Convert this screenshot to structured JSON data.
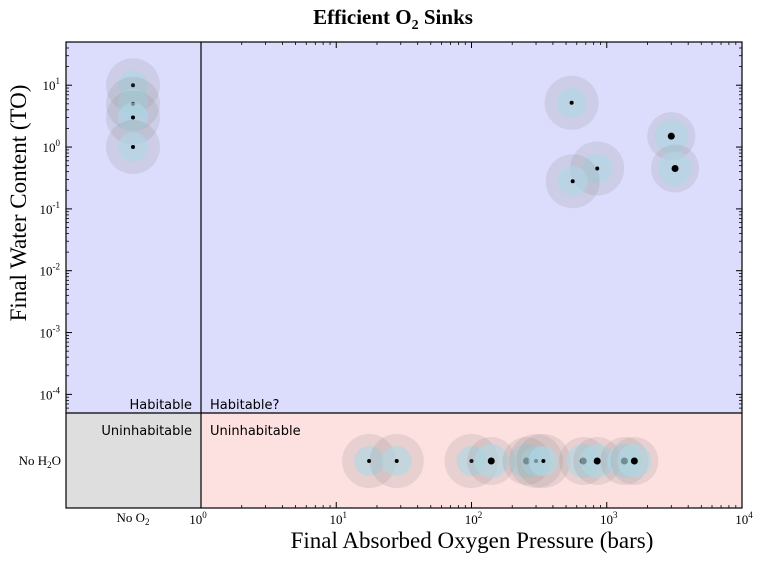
{
  "chart_data": {
    "type": "scatter",
    "title": "Efficient O",
    "title_sub": "2",
    "title_suffix": " Sinks",
    "xlabel": "Final Absorbed Oxygen Pressure (bars)",
    "ylabel": "Final Water Content (TO)",
    "x_scale": "log",
    "y_scale": "log",
    "xlim": [
      1,
      10000
    ],
    "ylim": [
      5e-05,
      50
    ],
    "x_ticks": [
      {
        "base": "10",
        "exp": "1",
        "value": 10
      },
      {
        "base": "10",
        "exp": "2",
        "value": 100
      },
      {
        "base": "10",
        "exp": "3",
        "value": 1000
      },
      {
        "base": "10",
        "exp": "4",
        "value": 10000
      }
    ],
    "x_origin_tick": {
      "base": "10",
      "exp": "0"
    },
    "y_ticks": [
      {
        "base": "10",
        "exp": "1",
        "value": 10
      },
      {
        "base": "10",
        "exp": "0",
        "value": 1
      },
      {
        "base": "10",
        "exp": "-1",
        "value": 0.1
      },
      {
        "base": "10",
        "exp": "-2",
        "value": 0.01
      },
      {
        "base": "10",
        "exp": "-3",
        "value": 0.001
      },
      {
        "base": "10",
        "exp": "-4",
        "value": 0.0001
      }
    ],
    "no_o2_label": {
      "main": "No O",
      "sub": "2"
    },
    "no_h2o_label": {
      "main": "No H",
      "sub": "2",
      "suffix": "O"
    },
    "regions": {
      "habitable": "Habitable",
      "habitable_q": "Habitable?",
      "uninhabitable_left": "Uninhabitable",
      "uninhabitable_right": "Uninhabitable"
    },
    "colors": {
      "habitable_bg": "#dcdcfc",
      "uninhabitable_bg": "#fde0e0",
      "no_o2_uninhabitable_bg": "#dedede",
      "halo": "#8a8a8a",
      "halo_opacity": 0.18,
      "core": "#add8e6",
      "core_opacity": 0.6,
      "dot": "#000000"
    },
    "series": [
      {
        "name": "no_o2_column",
        "points": [
          {
            "x": null,
            "y": 10,
            "size": "small"
          },
          {
            "x": null,
            "y": 5,
            "size": "small"
          },
          {
            "x": null,
            "y": 3,
            "size": "small"
          },
          {
            "x": null,
            "y": 1,
            "size": "small"
          }
        ]
      },
      {
        "name": "habitable_main",
        "points": [
          {
            "x": 550,
            "y": 5.2,
            "size": "small"
          },
          {
            "x": 850,
            "y": 0.45,
            "size": "small"
          },
          {
            "x": 560,
            "y": 0.28,
            "size": "small"
          },
          {
            "x": 3000,
            "y": 1.5,
            "size": "large"
          },
          {
            "x": 3200,
            "y": 0.45,
            "size": "large"
          }
        ]
      },
      {
        "name": "no_h2o_row",
        "points": [
          {
            "x": 17.5,
            "y": null,
            "size": "small"
          },
          {
            "x": 28,
            "y": null,
            "size": "small"
          },
          {
            "x": 100,
            "y": null,
            "size": "small"
          },
          {
            "x": 140,
            "y": null,
            "size": "large"
          },
          {
            "x": 255,
            "y": null,
            "size": "large"
          },
          {
            "x": 300,
            "y": null,
            "size": "small"
          },
          {
            "x": 340,
            "y": null,
            "size": "small"
          },
          {
            "x": 670,
            "y": null,
            "size": "large"
          },
          {
            "x": 850,
            "y": null,
            "size": "large"
          },
          {
            "x": 1350,
            "y": null,
            "size": "large"
          },
          {
            "x": 1600,
            "y": null,
            "size": "large"
          }
        ]
      }
    ]
  }
}
